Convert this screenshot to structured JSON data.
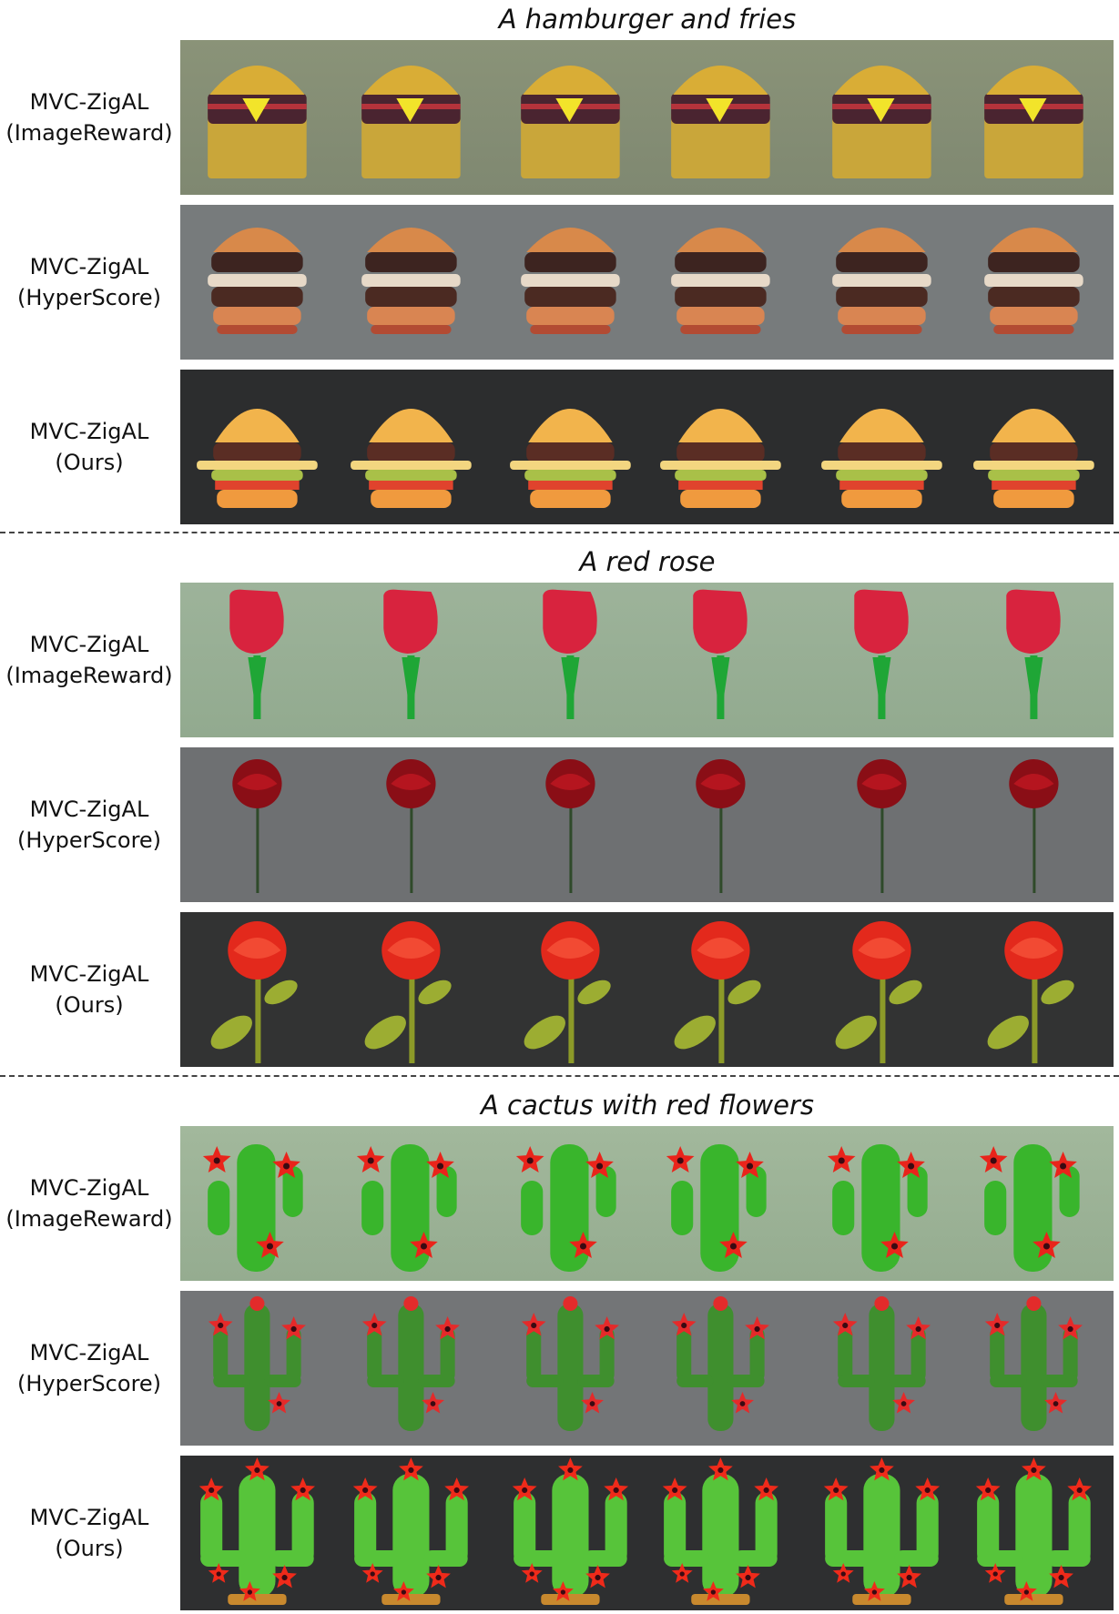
{
  "sections": [
    {
      "prompt": "A hamburger and fries",
      "rows": [
        {
          "line1": "MVC-ZigAL",
          "line2": "(ImageReward)"
        },
        {
          "line1": "MVC-ZigAL",
          "line2": "(HyperScore)"
        },
        {
          "line1": "MVC-ZigAL",
          "line2": "(Ours)"
        }
      ]
    },
    {
      "prompt": "A red rose",
      "rows": [
        {
          "line1": "MVC-ZigAL",
          "line2": "(ImageReward)"
        },
        {
          "line1": "MVC-ZigAL",
          "line2": "(HyperScore)"
        },
        {
          "line1": "MVC-ZigAL",
          "line2": "(Ours)"
        }
      ]
    },
    {
      "prompt": "A cactus with red flowers",
      "rows": [
        {
          "line1": "MVC-ZigAL",
          "line2": "(ImageReward)"
        },
        {
          "line1": "MVC-ZigAL",
          "line2": "(HyperScore)"
        },
        {
          "line1": "MVC-ZigAL",
          "line2": "(Ours)"
        }
      ]
    }
  ]
}
